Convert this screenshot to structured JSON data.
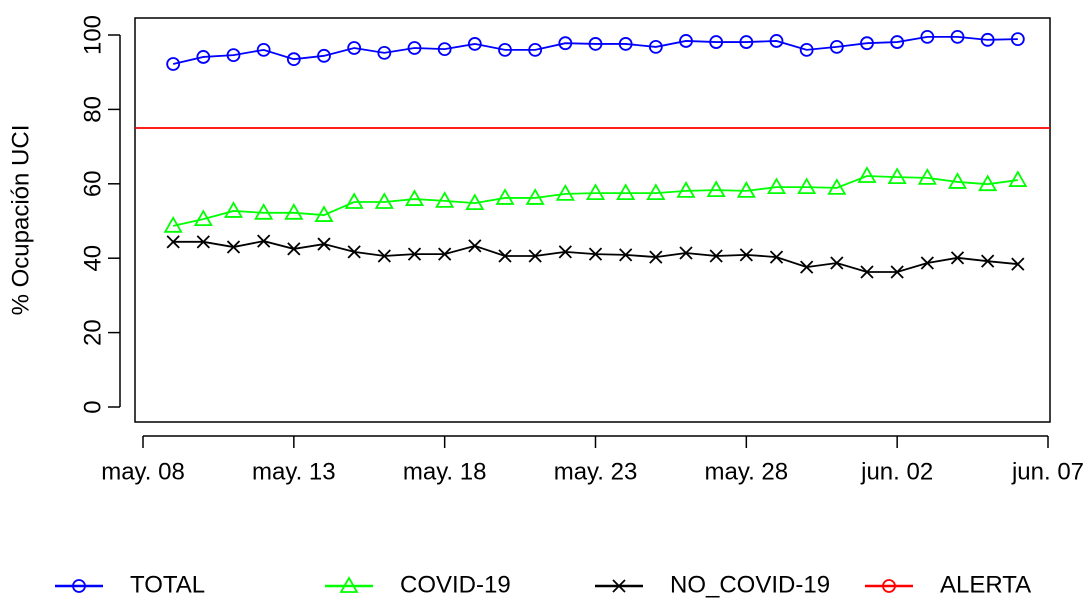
{
  "chart_data": {
    "type": "line",
    "ylabel": "% Ocupación UCI",
    "x": [
      "05-09",
      "05-10",
      "05-11",
      "05-12",
      "05-13",
      "05-14",
      "05-15",
      "05-16",
      "05-17",
      "05-18",
      "05-19",
      "05-20",
      "05-21",
      "05-22",
      "05-23",
      "05-24",
      "05-25",
      "05-26",
      "05-27",
      "05-28",
      "05-29",
      "05-30",
      "05-31",
      "06-01",
      "06-02",
      "06-03",
      "06-04",
      "06-05",
      "06-06"
    ],
    "xlim": [
      "05-08",
      "06-07"
    ],
    "xticks": [
      {
        "value": "05-08",
        "label": "may. 08"
      },
      {
        "value": "05-13",
        "label": "may. 13"
      },
      {
        "value": "05-18",
        "label": "may. 18"
      },
      {
        "value": "05-23",
        "label": "may. 23"
      },
      {
        "value": "05-28",
        "label": "may. 28"
      },
      {
        "value": "06-02",
        "label": "jun. 02"
      },
      {
        "value": "06-07",
        "label": "jun. 07"
      }
    ],
    "ylim": [
      0,
      100
    ],
    "yticks": [
      0,
      20,
      40,
      60,
      80,
      100
    ],
    "series": [
      {
        "name": "TOTAL",
        "color": "#0000ff",
        "marker": "circle",
        "values": [
          92.2,
          94.1,
          94.6,
          96.0,
          93.5,
          94.4,
          96.5,
          95.2,
          96.5,
          96.2,
          97.6,
          96.0,
          96.0,
          97.8,
          97.6,
          97.6,
          96.8,
          98.4,
          98.1,
          98.1,
          98.4,
          96.0,
          96.8,
          97.8,
          98.1,
          99.5,
          99.5,
          98.7,
          98.9
        ]
      },
      {
        "name": "COVID-19",
        "color": "#00ff00",
        "marker": "triangle",
        "values": [
          48.7,
          50.5,
          52.7,
          52.2,
          52.2,
          51.6,
          55.1,
          55.1,
          55.9,
          55.4,
          54.8,
          56.2,
          56.2,
          57.3,
          57.5,
          57.5,
          57.5,
          58.1,
          58.3,
          58.1,
          59.1,
          59.1,
          58.9,
          62.1,
          61.8,
          61.6,
          60.5,
          59.9,
          61.0
        ]
      },
      {
        "name": "NO_COVID-19",
        "color": "#000000",
        "marker": "x",
        "values": [
          44.4,
          44.4,
          43.0,
          44.6,
          42.5,
          43.8,
          41.7,
          40.6,
          41.1,
          41.1,
          43.3,
          40.6,
          40.6,
          41.7,
          41.1,
          40.9,
          40.3,
          41.4,
          40.6,
          40.9,
          40.3,
          37.6,
          38.7,
          36.3,
          36.3,
          38.7,
          40.1,
          39.2,
          38.4
        ]
      }
    ],
    "hlines": [
      {
        "name": "ALERTA",
        "color": "#ff0000",
        "marker": "circle",
        "value": 75
      }
    ],
    "legend": "bottom"
  }
}
